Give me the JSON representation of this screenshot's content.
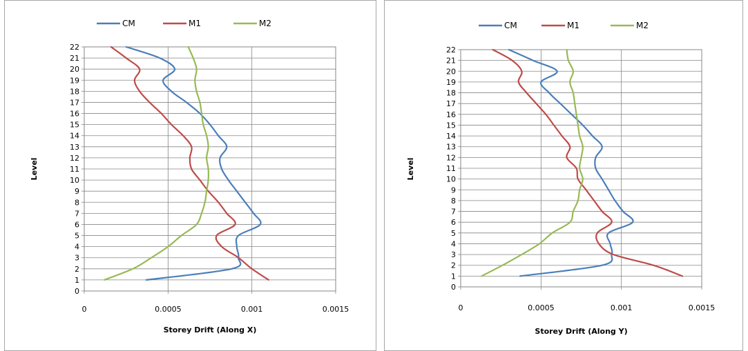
{
  "chart_data": [
    {
      "type": "line",
      "title": "",
      "xlabel": "Storey Drift (Along X)",
      "ylabel": "Level",
      "xlim": [
        0,
        0.0015
      ],
      "ylim": [
        0,
        22
      ],
      "x_ticks": [
        "0",
        "0.0005",
        "0.001",
        "0.0015"
      ],
      "y_ticks": [
        "0",
        "1",
        "2",
        "3",
        "4",
        "5",
        "6",
        "7",
        "8",
        "9",
        "10",
        "11",
        "12",
        "13",
        "14",
        "15",
        "16",
        "17",
        "18",
        "19",
        "20",
        "21",
        "22"
      ],
      "grid": true,
      "legend_position": "top",
      "series": [
        {
          "name": "CM",
          "color": "#4a7ebb",
          "x": [
            0.00037,
            0.00088,
            0.00092,
            0.00091,
            0.00092,
            0.00105,
            0.00101,
            0.00096,
            0.00091,
            0.00086,
            0.00082,
            0.00081,
            0.00085,
            0.0008,
            0.00075,
            0.00069,
            0.00061,
            0.00052,
            0.00047,
            0.00054,
            0.00045,
            0.00025
          ],
          "y": [
            1,
            2,
            3,
            4,
            5,
            6,
            7,
            8,
            9,
            10,
            11,
            12,
            13,
            14,
            15,
            16,
            17,
            18,
            19,
            20,
            21,
            22
          ]
        },
        {
          "name": "M1",
          "color": "#be4b48",
          "x": [
            0.0011,
            0.001,
            0.00092,
            0.00082,
            0.00079,
            0.0009,
            0.00085,
            0.0008,
            0.00074,
            0.00069,
            0.00064,
            0.00063,
            0.00064,
            0.00059,
            0.00052,
            0.00046,
            0.00039,
            0.00033,
            0.0003,
            0.00033,
            0.00025,
            0.00016
          ],
          "y": [
            1,
            2,
            3,
            4,
            5,
            6,
            7,
            8,
            9,
            10,
            11,
            12,
            13,
            14,
            15,
            16,
            17,
            18,
            19,
            20,
            21,
            22
          ]
        },
        {
          "name": "M2",
          "color": "#98b954",
          "x": [
            0.00012,
            0.00029,
            0.0004,
            0.0005,
            0.00058,
            0.00067,
            0.0007,
            0.00072,
            0.00073,
            0.00074,
            0.00074,
            0.00073,
            0.00074,
            0.00073,
            0.00071,
            0.0007,
            0.00069,
            0.00067,
            0.00066,
            0.00067,
            0.00065,
            0.00062
          ],
          "y": [
            1,
            2,
            3,
            4,
            5,
            6,
            7,
            8,
            9,
            10,
            11,
            12,
            13,
            14,
            15,
            16,
            17,
            18,
            19,
            20,
            21,
            22
          ]
        }
      ]
    },
    {
      "type": "line",
      "title": "",
      "xlabel": "Storey Drift (Along Y)",
      "ylabel": "Level",
      "xlim": [
        0,
        0.0015
      ],
      "ylim": [
        0,
        22
      ],
      "x_ticks": [
        "0",
        "0.0005",
        "0.001",
        "0.0015"
      ],
      "y_ticks": [
        "0",
        "1",
        "2",
        "3",
        "4",
        "5",
        "6",
        "7",
        "8",
        "9",
        "10",
        "11",
        "12",
        "13",
        "14",
        "15",
        "16",
        "17",
        "18",
        "19",
        "20",
        "21",
        "22"
      ],
      "grid": true,
      "legend_position": "top",
      "series": [
        {
          "name": "CM",
          "color": "#4a7ebb",
          "x": [
            0.00037,
            0.00088,
            0.00094,
            0.00093,
            0.00092,
            0.00107,
            0.00101,
            0.00096,
            0.00092,
            0.00088,
            0.00084,
            0.00084,
            0.00088,
            0.00082,
            0.00076,
            0.00069,
            0.00062,
            0.00055,
            0.0005,
            0.0006,
            0.00045,
            0.0003
          ],
          "y": [
            1,
            2,
            3,
            4,
            5,
            6,
            7,
            8,
            9,
            10,
            11,
            12,
            13,
            14,
            15,
            16,
            17,
            18,
            19,
            20,
            21,
            22
          ]
        },
        {
          "name": "M1",
          "color": "#be4b48",
          "x": [
            0.00138,
            0.0012,
            0.00095,
            0.00086,
            0.00085,
            0.00094,
            0.00088,
            0.00083,
            0.00078,
            0.00073,
            0.00072,
            0.00066,
            0.00068,
            0.00063,
            0.00058,
            0.00053,
            0.00047,
            0.00041,
            0.00036,
            0.00038,
            0.00032,
            0.0002
          ],
          "y": [
            1,
            2,
            3,
            4,
            5,
            6,
            7,
            8,
            9,
            10,
            11,
            12,
            13,
            14,
            15,
            16,
            17,
            18,
            19,
            20,
            21,
            22
          ]
        },
        {
          "name": "M2",
          "color": "#98b954",
          "x": [
            0.00013,
            0.00026,
            0.00038,
            0.00049,
            0.00057,
            0.00068,
            0.0007,
            0.00073,
            0.00074,
            0.00076,
            0.00074,
            0.00075,
            0.00076,
            0.00074,
            0.00073,
            0.00072,
            0.00071,
            0.0007,
            0.00068,
            0.0007,
            0.00067,
            0.00066
          ],
          "y": [
            1,
            2,
            3,
            4,
            5,
            6,
            7,
            8,
            9,
            10,
            11,
            12,
            13,
            14,
            15,
            16,
            17,
            18,
            19,
            20,
            21,
            22
          ]
        }
      ]
    }
  ]
}
